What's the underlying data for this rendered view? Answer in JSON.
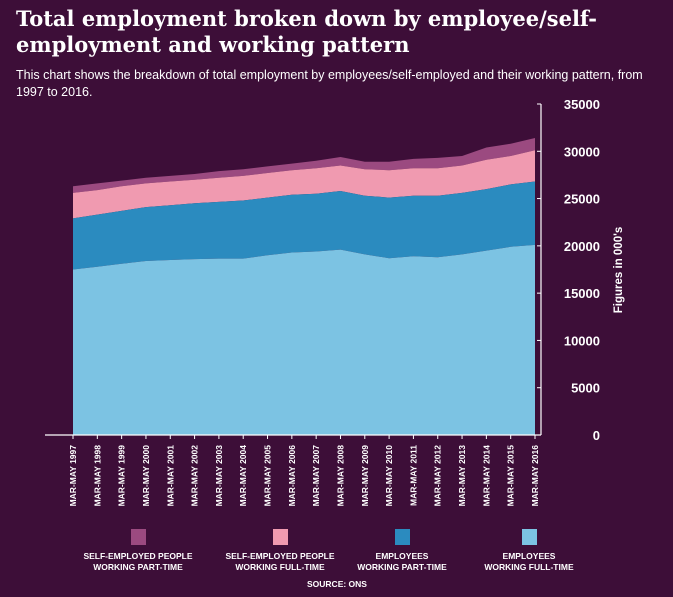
{
  "chart_data": {
    "type": "area",
    "stacked": true,
    "title": "Total employment broken down by employee/self-employment and working pattern",
    "subtitle": "This chart shows the breakdown of total employment by employees/self-employed and their working pattern, from 1997 to 2016.",
    "ylabel": "Figures in 000's",
    "ylim": [
      0,
      35000
    ],
    "yticks": [
      0,
      5000,
      10000,
      15000,
      20000,
      25000,
      30000,
      35000
    ],
    "y_axis_side": "right",
    "grid": false,
    "legend_placement": "bottom",
    "source": "SOURCE: ONS",
    "categories": [
      "MAR-MAY 1997",
      "MAR-MAY 1998",
      "MAR-MAY 1999",
      "MAR-MAY 2000",
      "MAR-MAY 2001",
      "MAR-MAY 2002",
      "MAR-MAY 2003",
      "MAR-MAY 2004",
      "MAR-MAY 2005",
      "MAR-MAY 2006",
      "MAR-MAY 2007",
      "MAR-MAY 2008",
      "MAR-MAY 2009",
      "MAR-MAY 2010",
      "MAR-MAY 2011",
      "MAR-MAY 2012",
      "MAR-MAY 2013",
      "MAR-MAY 2014",
      "MAR-MAY 2015",
      "MAR-MAY 2016"
    ],
    "series": [
      {
        "name": "EMPLOYEES WORKING FULL-TIME",
        "color": "#7cc3e3",
        "values": [
          17500,
          17800,
          18100,
          18400,
          18500,
          18600,
          18650,
          18650,
          19000,
          19300,
          19400,
          19600,
          19100,
          18700,
          18900,
          18800,
          19100,
          19500,
          19900,
          20100
        ]
      },
      {
        "name": "EMPLOYEES WORKING PART-TIME",
        "color": "#2b8bbf",
        "values": [
          5400,
          5500,
          5600,
          5700,
          5800,
          5900,
          6000,
          6150,
          6100,
          6100,
          6100,
          6200,
          6200,
          6400,
          6400,
          6500,
          6500,
          6500,
          6600,
          6700
        ]
      },
      {
        "name": "SELF-EMPLOYED PEOPLE WORKING FULL-TIME",
        "color": "#f09ab0",
        "values": [
          2700,
          2600,
          2600,
          2500,
          2500,
          2500,
          2550,
          2600,
          2600,
          2600,
          2700,
          2700,
          2800,
          2900,
          2900,
          2900,
          2900,
          3100,
          3000,
          3300
        ]
      },
      {
        "name": "SELF-EMPLOYED PEOPLE WORKING PART-TIME",
        "color": "#9b4a80",
        "values": [
          700,
          700,
          600,
          600,
          600,
          600,
          700,
          700,
          700,
          700,
          800,
          900,
          800,
          900,
          1000,
          1100,
          1000,
          1300,
          1300,
          1300
        ]
      }
    ],
    "legend_order": [
      {
        "line1": "SELF-EMPLOYED PEOPLE",
        "line2": "WORKING PART-TIME",
        "color": "#9b4a80"
      },
      {
        "line1": "SELF-EMPLOYED PEOPLE",
        "line2": "WORKING FULL-TIME",
        "color": "#f09ab0"
      },
      {
        "line1": "EMPLOYEES",
        "line2": "WORKING PART-TIME",
        "color": "#2b8bbf"
      },
      {
        "line1": "EMPLOYEES",
        "line2": "WORKING FULL-TIME",
        "color": "#7cc3e3"
      }
    ]
  },
  "colors": {
    "background": "#3d0e38",
    "text": "#ffffff"
  }
}
